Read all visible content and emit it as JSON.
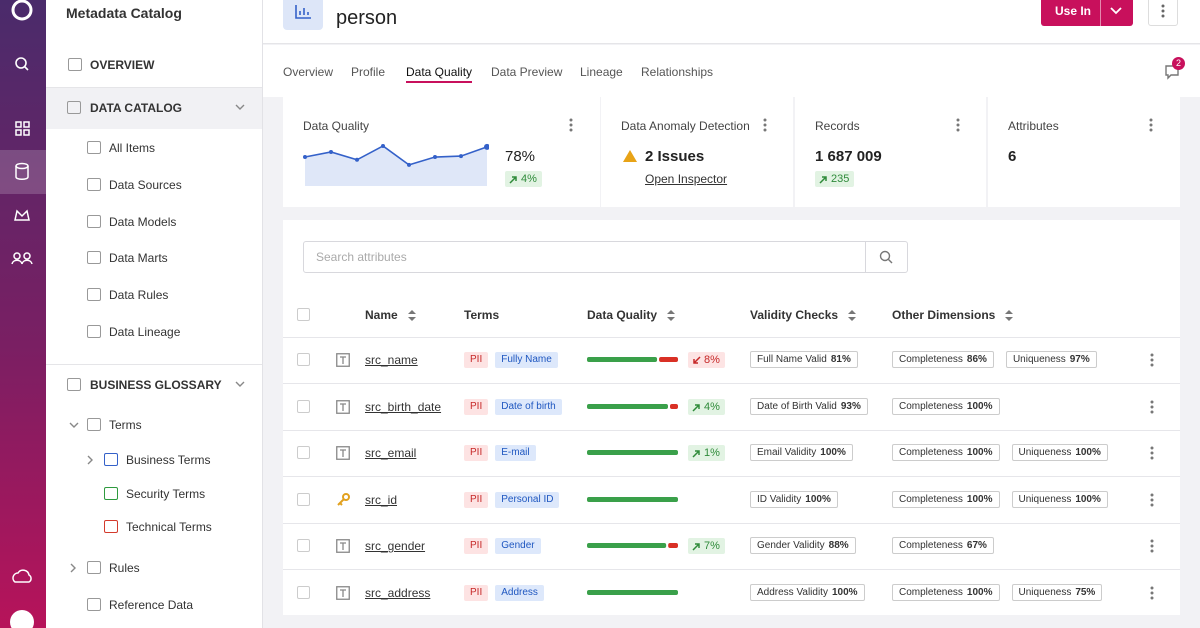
{
  "sidebar": {
    "title": "Metadata Catalog",
    "overview": "OVERVIEW",
    "catalog": {
      "label": "DATA CATALOG",
      "items": [
        "All Items",
        "Data Sources",
        "Data Models",
        "Data Marts",
        "Data Rules",
        "Data Lineage"
      ]
    },
    "glossary": {
      "label": "BUSINESS GLOSSARY",
      "terms": "Terms",
      "term_items": [
        "Business Terms",
        "Security Terms",
        "Technical Terms"
      ],
      "rules": "Rules",
      "reference": "Reference Data"
    }
  },
  "header": {
    "title": "person",
    "action": "Use In",
    "notifications": "2"
  },
  "tabs": [
    "Overview",
    "Profile",
    "Data Quality",
    "Data Preview",
    "Lineage",
    "Relationships"
  ],
  "active_tab": 2,
  "cards": [
    {
      "title": "Data Quality",
      "value": "78%",
      "change": "4%",
      "sparkline": {
        "values": [
          63,
          74,
          57,
          87,
          46,
          63,
          65,
          85
        ],
        "ylim": [
          0,
          100
        ]
      }
    },
    {
      "title": "Data Anomaly Detection",
      "value": "2 Issues",
      "link": "Open Inspector"
    },
    {
      "title": "Records",
      "value": "1 687 009",
      "change": "235"
    },
    {
      "title": "Attributes",
      "value": "6"
    }
  ],
  "table": {
    "search_placeholder": "Search attributes",
    "columns": [
      {
        "label": "Name",
        "sortable": true
      },
      {
        "label": "Terms",
        "sortable": false
      },
      {
        "label": "Data Quality",
        "sortable": true
      },
      {
        "label": "Validity Checks",
        "sortable": true
      },
      {
        "label": "Other Dimensions",
        "sortable": true
      }
    ],
    "rows": [
      {
        "name": "src_name",
        "key": false,
        "tags": [
          "PII",
          "Fully Name"
        ],
        "quality": 77,
        "change": "8%",
        "trend": "down",
        "validity": {
          "label": "Full Name Valid",
          "value": "81%"
        },
        "dimensions": [
          {
            "label": "Completeness",
            "value": "86%"
          },
          {
            "label": "Uniqueness",
            "value": "97%"
          }
        ]
      },
      {
        "name": "src_birth_date",
        "key": false,
        "tags": [
          "PII",
          "Date of birth"
        ],
        "quality": 89,
        "change": "4%",
        "trend": "up",
        "validity": {
          "label": "Date of Birth Valid",
          "value": "93%"
        },
        "dimensions": [
          {
            "label": "Completeness",
            "value": "100%"
          }
        ]
      },
      {
        "name": "src_email",
        "key": false,
        "tags": [
          "PII",
          "E-mail"
        ],
        "quality": 100,
        "change": "1%",
        "trend": "up",
        "validity": {
          "label": "Email Validity",
          "value": "100%"
        },
        "dimensions": [
          {
            "label": "Completeness",
            "value": "100%"
          },
          {
            "label": "Uniqueness",
            "value": "100%"
          }
        ]
      },
      {
        "name": "src_id",
        "key": true,
        "tags": [
          "PII",
          "Personal ID"
        ],
        "quality": 100,
        "validity": {
          "label": "ID Validity",
          "value": "100%"
        },
        "dimensions": [
          {
            "label": "Completeness",
            "value": "100%"
          },
          {
            "label": "Uniqueness",
            "value": "100%"
          }
        ]
      },
      {
        "name": "src_gender",
        "key": false,
        "tags": [
          "PII",
          "Gender"
        ],
        "quality": 87,
        "change": "7%",
        "trend": "up",
        "validity": {
          "label": "Gender Validity",
          "value": "88%"
        },
        "dimensions": [
          {
            "label": "Completeness",
            "value": "67%"
          }
        ]
      },
      {
        "name": "src_address",
        "key": false,
        "tags": [
          "PII",
          "Address"
        ],
        "quality": 100,
        "validity": {
          "label": "Address Validity",
          "value": "100%"
        },
        "dimensions": [
          {
            "label": "Completeness",
            "value": "100%"
          },
          {
            "label": "Uniqueness",
            "value": "75%"
          }
        ]
      }
    ]
  }
}
